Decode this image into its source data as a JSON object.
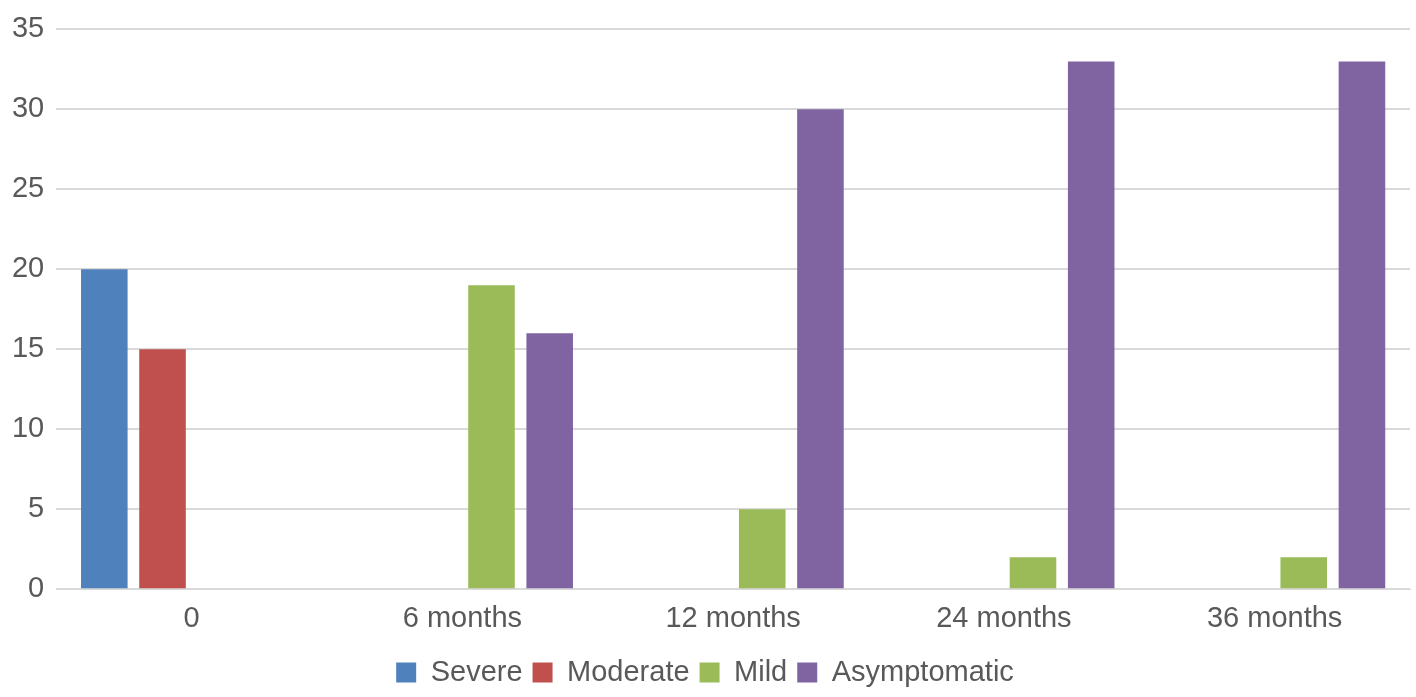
{
  "chart_data": {
    "type": "bar",
    "categories": [
      "0",
      "6 months",
      "12 months",
      "24 months",
      "36 months"
    ],
    "series": [
      {
        "name": "Severe",
        "color": "#4f81bd",
        "values": [
          20,
          0,
          0,
          0,
          0
        ]
      },
      {
        "name": "Moderate",
        "color": "#c0504d",
        "values": [
          15,
          0,
          0,
          0,
          0
        ]
      },
      {
        "name": "Mild",
        "color": "#9bbb59",
        "values": [
          0,
          19,
          5,
          2,
          2
        ]
      },
      {
        "name": "Asymptomatic",
        "color": "#8064a2",
        "values": [
          0,
          16,
          30,
          33,
          33
        ]
      }
    ],
    "ylim": [
      0,
      35
    ],
    "yticks": [
      0,
      5,
      10,
      15,
      20,
      25,
      30,
      35
    ],
    "grid": "y",
    "legend": "bottom"
  }
}
